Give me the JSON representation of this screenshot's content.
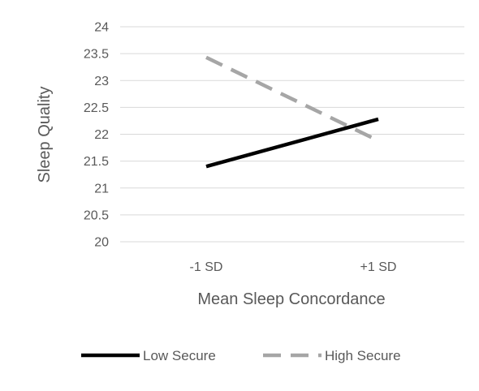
{
  "chart_data": {
    "type": "line",
    "title": "",
    "xlabel": "Mean Sleep Concordance",
    "ylabel": "Sleep Quality",
    "categories": [
      "-1 SD",
      "+1 SD"
    ],
    "ylim": [
      20,
      24
    ],
    "yticks": [
      20,
      20.5,
      21,
      21.5,
      22,
      22.5,
      23,
      23.5,
      24
    ],
    "grid": true,
    "legend_position": "bottom",
    "series": [
      {
        "name": "Low Secure",
        "values": [
          21.4,
          22.28
        ],
        "color": "#000000",
        "dash": "solid"
      },
      {
        "name": "High Secure",
        "values": [
          23.43,
          21.88
        ],
        "color": "#a6a6a6",
        "dash": "dashed"
      }
    ]
  }
}
